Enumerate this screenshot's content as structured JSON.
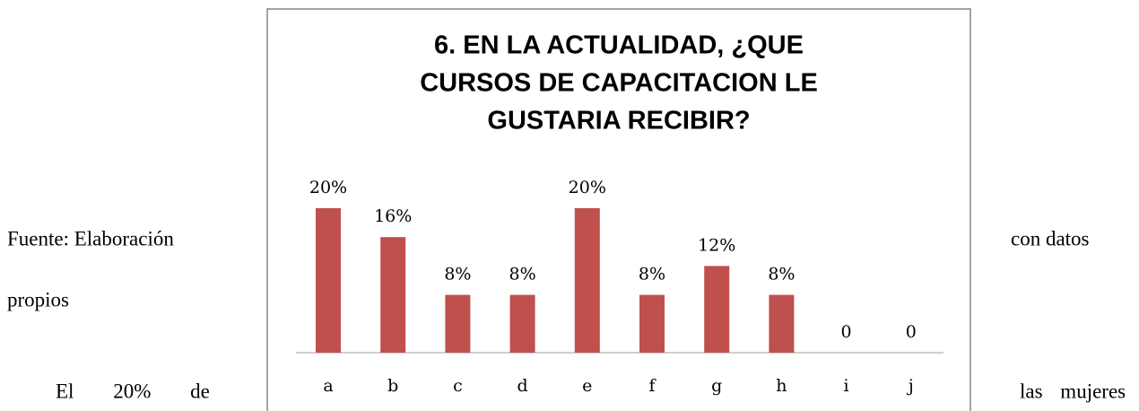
{
  "text": {
    "left_1": "Fuente: Elaboración",
    "right_1": "con datos",
    "left_2": "propios",
    "left_3": "El 20% de",
    "right_3": "las mujeres"
  },
  "chart_data": {
    "type": "bar",
    "title_lines": [
      "6. EN LA ACTUALIDAD, ¿QUE",
      "CURSOS DE CAPACITACION LE",
      "GUSTARIA RECIBIR?"
    ],
    "categories": [
      "a",
      "b",
      "c",
      "d",
      "e",
      "f",
      "g",
      "h",
      "i",
      "j"
    ],
    "values": [
      20,
      16,
      8,
      8,
      20,
      8,
      12,
      8,
      0,
      0
    ],
    "value_labels": [
      "20%",
      "16%",
      "8%",
      "8%",
      "20%",
      "8%",
      "12%",
      "8%",
      "0",
      "0"
    ],
    "color": "#c0504d"
  }
}
